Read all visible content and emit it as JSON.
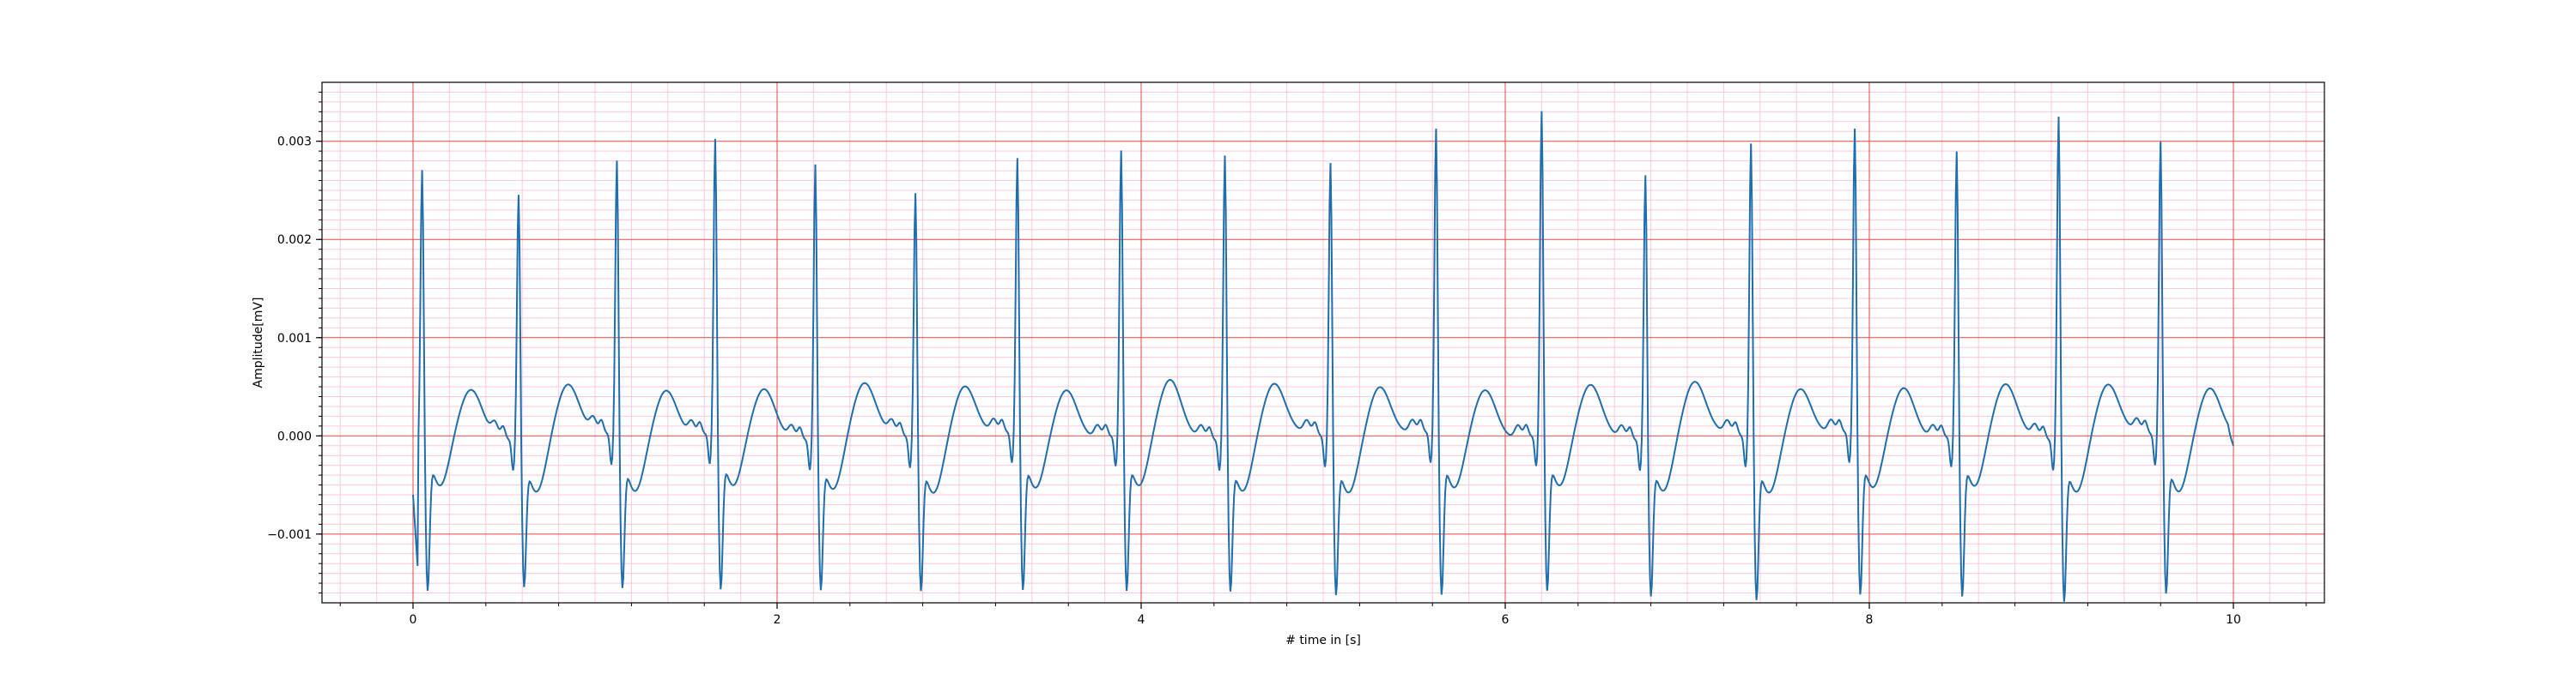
{
  "chart_data": {
    "type": "line",
    "title": "",
    "xlabel": "# time in [s]",
    "ylabel": "Amplitude[mV]",
    "xlim": [
      -0.5,
      10.5
    ],
    "ylim": [
      -0.0017,
      0.0036
    ],
    "xticks": [
      0,
      2,
      4,
      6,
      8,
      10
    ],
    "xtick_labels": [
      "0",
      "2",
      "4",
      "6",
      "8",
      "10"
    ],
    "yticks": [
      -0.001,
      0.0,
      0.001,
      0.002,
      0.003
    ],
    "ytick_labels": [
      "−0.001",
      "0.000",
      "0.001",
      "0.002",
      "0.003"
    ],
    "grid": true,
    "minor_grid": true,
    "grid_color": "#ee4444",
    "minor_grid_color": "#ffc8dc",
    "line_color": "#1f6fad",
    "series": [
      {
        "sample_rate_hz": 200,
        "beat_times": [
          0.05,
          0.58,
          1.12,
          1.66,
          2.21,
          2.76,
          3.32,
          3.89,
          4.46,
          5.04,
          5.62,
          6.2,
          6.77,
          7.35,
          7.92,
          8.48,
          9.04,
          9.6
        ],
        "r_peaks": [
          0.0028,
          0.0026,
          0.0029,
          0.0031,
          0.0029,
          0.0026,
          0.0029,
          0.003,
          0.003,
          0.0029,
          0.0032,
          0.0034,
          0.0028,
          0.0031,
          0.0032,
          0.003,
          0.0034,
          0.0031
        ],
        "s_troughs": [
          -0.00095,
          -0.00085,
          -0.0009,
          -0.00095,
          -0.0009,
          -0.0009,
          -0.00095,
          -0.00095,
          -0.0009,
          -0.00095,
          -0.001,
          -0.00095,
          -0.00095,
          -0.001,
          -0.001,
          -0.001,
          -0.001,
          -0.00095
        ],
        "t_peaks": [
          0.00015,
          0.0002,
          0.0002,
          0.00018,
          0.0002,
          0.00022,
          0.0002,
          0.00025,
          0.0002,
          0.00022,
          0.0002,
          0.0002,
          0.00022,
          0.0002,
          0.00022,
          0.0002,
          0.0002,
          0.00022
        ],
        "start_value": -0.0006,
        "start_min": -0.00147,
        "end_value": -0.0001
      }
    ]
  }
}
